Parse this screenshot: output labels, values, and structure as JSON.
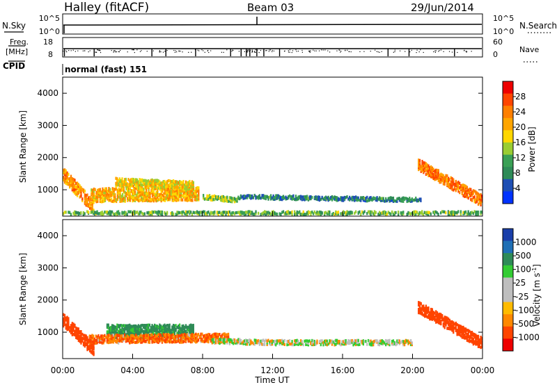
{
  "header": {
    "station": "Halley (fitACF)",
    "beam": "Beam 03",
    "date": "29/Jun/2014"
  },
  "top_panels": {
    "nsky_label": "N.Sky",
    "nsearch_label": "N.Search",
    "left_ticks": [
      "10^5",
      "10^0"
    ],
    "right_ticks": [
      "10^5",
      "10^0"
    ],
    "freq_label_1": "Freq.",
    "freq_label_2": "[MHz]",
    "freq_ticks": [
      "18",
      "8"
    ],
    "nave_label": "Nave",
    "nave_ticks": [
      "60",
      "0"
    ],
    "cpid_label": "CPID",
    "cpid_value": "normal (fast) 151"
  },
  "x_axis": {
    "label": "Time UT",
    "ticks": [
      "00:00",
      "04:00",
      "08:00",
      "12:00",
      "16:00",
      "20:00",
      "00:00"
    ]
  },
  "colors": {
    "power_scale": [
      "#0033ff",
      "#1e4fb4",
      "#2e8b57",
      "#3aa055",
      "#9acd32",
      "#ffd700",
      "#ffa500",
      "#ff7f00",
      "#ff4500",
      "#ee0000"
    ],
    "velocity_scale": [
      "#ee0000",
      "#ff4400",
      "#ff8800",
      "#ffbb00",
      "#bebebe",
      "#bebebe",
      "#33cc33",
      "#2e8b57",
      "#1f6fb5",
      "#1a3faa"
    ]
  },
  "chart_data": [
    {
      "type": "heatmap",
      "panel": "power",
      "ylabel": "Slant Range [km]",
      "ylim": [
        180,
        4500
      ],
      "yticks": [
        "1000",
        "2000",
        "3000",
        "4000"
      ],
      "xlim_hours": [
        0,
        24
      ],
      "colorbar": {
        "label": "Power [dB]",
        "ticks": [
          "4",
          "8",
          "12",
          "16",
          "20",
          "24",
          "28"
        ],
        "range": [
          0,
          32
        ]
      },
      "features": [
        {
          "t_start": 0.0,
          "t_end": 1.8,
          "range_start": 1500,
          "range_end": 450,
          "width": 420,
          "value": 22,
          "name": "descending_echo_00"
        },
        {
          "t_start": 1.6,
          "t_end": 7.8,
          "range_start": 850,
          "range_end": 900,
          "width": 420,
          "value": 20,
          "name": "morning_band"
        },
        {
          "t_start": 3.0,
          "t_end": 7.5,
          "range_start": 1250,
          "range_end": 1150,
          "width": 250,
          "value": 18,
          "name": "upper_morning_band"
        },
        {
          "t_start": 8.0,
          "t_end": 10.0,
          "range_start": 800,
          "range_end": 700,
          "width": 150,
          "value": 14,
          "name": "midday_patch"
        },
        {
          "t_start": 0.0,
          "t_end": 24.0,
          "range_start": 300,
          "range_end": 300,
          "width": 100,
          "value": 12,
          "name": "near_range_ground"
        },
        {
          "t_start": 10.0,
          "t_end": 20.5,
          "range_start": 800,
          "range_end": 700,
          "width": 120,
          "value": 8,
          "name": "sparse_afternoon"
        },
        {
          "t_start": 20.3,
          "t_end": 24.0,
          "range_start": 1800,
          "range_end": 650,
          "width": 350,
          "value": 24,
          "name": "descending_echo_22"
        }
      ]
    },
    {
      "type": "heatmap",
      "panel": "velocity",
      "ylabel": "Slant Range [km]",
      "ylim": [
        180,
        4500
      ],
      "yticks": [
        "1000",
        "2000",
        "3000",
        "4000"
      ],
      "xlim_hours": [
        0,
        24
      ],
      "colorbar": {
        "label": "Velocity [m s^-1]",
        "ticks": [
          "1000",
          "500",
          "100",
          "25",
          "-25",
          "-100",
          "-500",
          "-1000"
        ],
        "range": [
          -1000,
          1000
        ]
      },
      "features": [
        {
          "t_start": 0.0,
          "t_end": 1.8,
          "range_start": 1400,
          "range_end": 450,
          "width": 400,
          "value": -300,
          "name": "descending_echo_00"
        },
        {
          "t_start": 2.5,
          "t_end": 7.5,
          "range_start": 1050,
          "range_end": 1050,
          "width": 400,
          "value": 150,
          "name": "morning_green"
        },
        {
          "t_start": 1.5,
          "t_end": 9.5,
          "range_start": 800,
          "range_end": 850,
          "width": 250,
          "value": -100,
          "name": "morning_orange"
        },
        {
          "t_start": 8.5,
          "t_end": 12.0,
          "range_start": 750,
          "range_end": 700,
          "width": 150,
          "value": 0,
          "name": "midday_grey"
        },
        {
          "t_start": 12.0,
          "t_end": 20.0,
          "range_start": 700,
          "range_end": 700,
          "width": 150,
          "value": 10,
          "name": "afternoon_grey"
        },
        {
          "t_start": 20.3,
          "t_end": 24.0,
          "range_start": 1800,
          "range_end": 650,
          "width": 350,
          "value": -350,
          "name": "descending_echo_22"
        }
      ]
    }
  ]
}
